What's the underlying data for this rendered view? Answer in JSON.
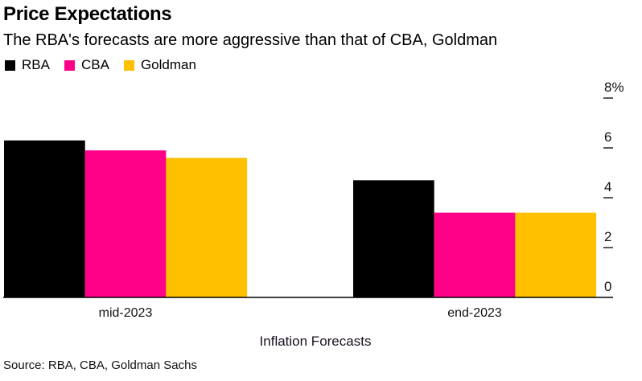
{
  "chart_data": {
    "type": "bar",
    "title": "Price Expectations",
    "subtitle": "The RBA's forecasts are more aggressive than that of CBA, Goldman",
    "xlabel": "Inflation Forecasts",
    "ylabel": "",
    "categories": [
      "mid-2023",
      "end-2023"
    ],
    "series": [
      {
        "name": "RBA",
        "color": "#000000",
        "values": [
          6.3,
          4.7
        ]
      },
      {
        "name": "CBA",
        "color": "#ff0088",
        "values": [
          5.9,
          3.4
        ]
      },
      {
        "name": "Goldman",
        "color": "#ffc000",
        "values": [
          5.6,
          3.4
        ]
      }
    ],
    "ylim": [
      0,
      8
    ],
    "yticks": [
      0,
      2,
      4,
      6,
      8
    ],
    "ytick_labels": [
      "0",
      "2",
      "4",
      "6",
      "8%"
    ],
    "yaxis_position": "right",
    "grid": false,
    "legend_position": "top-left",
    "source": "Source: RBA, CBA, Goldman Sachs"
  }
}
